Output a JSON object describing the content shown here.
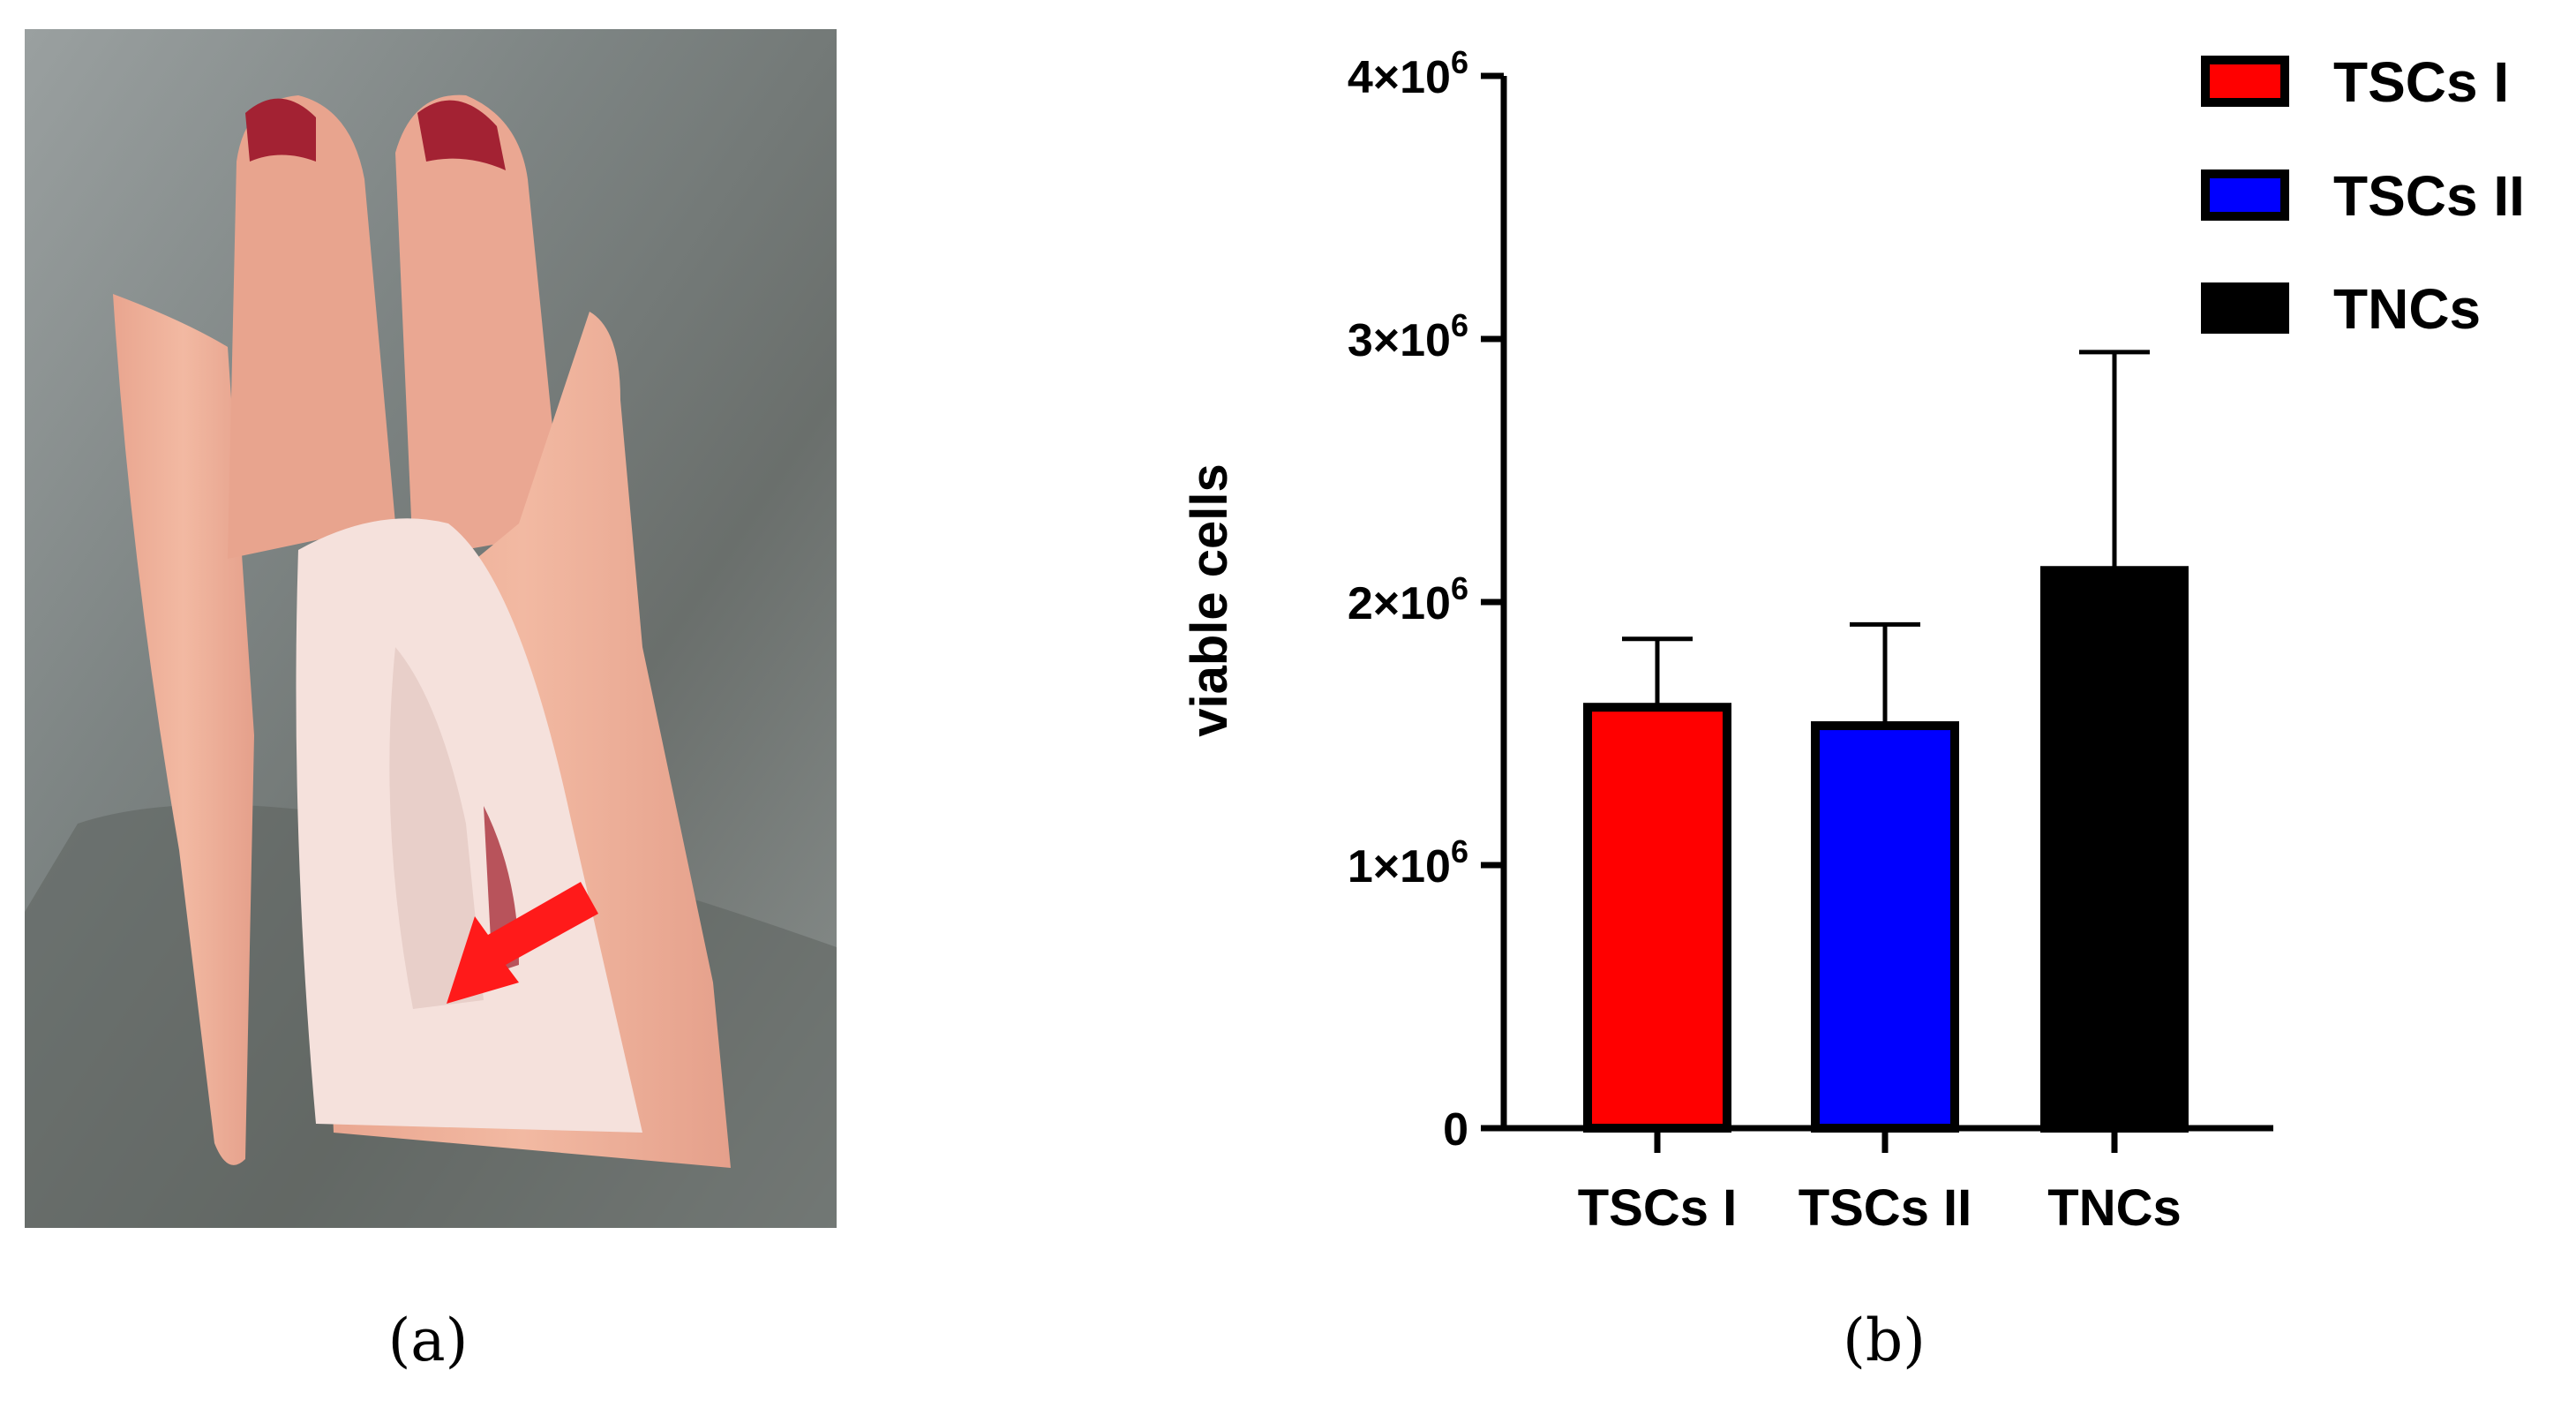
{
  "panels": {
    "a": {
      "caption": "(a)",
      "photo": "dissected-porcine-foot-icon",
      "arrow_color": "#ff1a1a"
    },
    "b": {
      "caption": "(b)"
    }
  },
  "chart_data": {
    "type": "bar",
    "categories": [
      "TSCs I",
      "TSCs II",
      "TNCs"
    ],
    "values": [
      1600000,
      1530000,
      2120000
    ],
    "errors": [
      260000,
      385000,
      830000
    ],
    "colors": [
      "#ff0000",
      "#0000ff",
      "#000000"
    ],
    "xlabel": "",
    "ylabel": "viable cells",
    "ylim": [
      0,
      4000000
    ],
    "yticks": [
      {
        "value": 0,
        "base": "0",
        "exp": ""
      },
      {
        "value": 1000000,
        "base": "1×10",
        "exp": "6"
      },
      {
        "value": 2000000,
        "base": "2×10",
        "exp": "6"
      },
      {
        "value": 3000000,
        "base": "3×10",
        "exp": "6"
      },
      {
        "value": 4000000,
        "base": "4×10",
        "exp": "6"
      }
    ],
    "legend": [
      {
        "label": "TSCs I",
        "color": "#ff0000"
      },
      {
        "label": "TSCs II",
        "color": "#0000ff"
      },
      {
        "label": "TNCs",
        "color": "#000000"
      }
    ],
    "legend_position": "top-right",
    "grid": false
  }
}
